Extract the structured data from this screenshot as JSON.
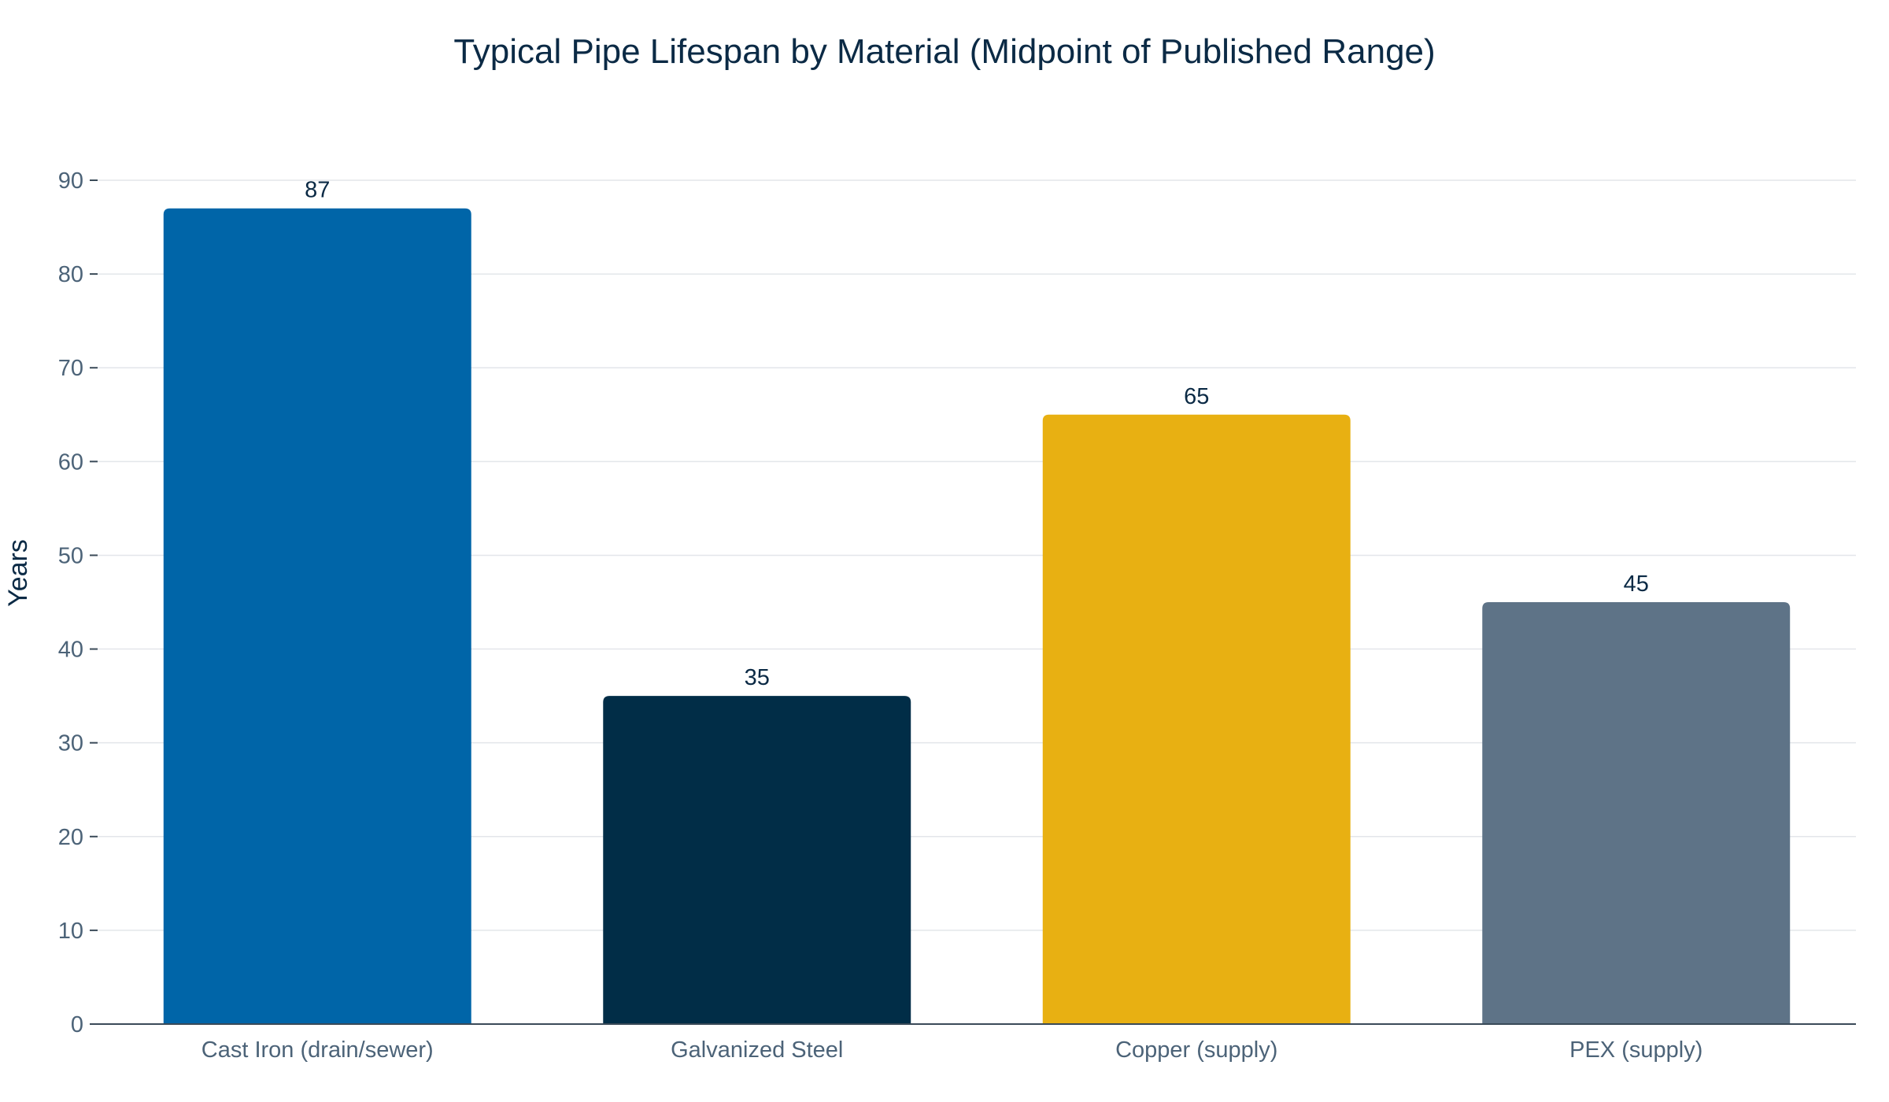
{
  "chart_data": {
    "type": "bar",
    "title": "Typical Pipe Lifespan by Material (Midpoint of Published Range)",
    "xlabel": "",
    "ylabel": "Years",
    "ylim": [
      0,
      90
    ],
    "yticks": [
      0,
      10,
      20,
      30,
      40,
      50,
      60,
      70,
      80,
      90
    ],
    "grid": true,
    "categories": [
      "Cast Iron (drain/sewer)",
      "Galvanized Steel",
      "Copper (supply)",
      "PEX (supply)"
    ],
    "values": [
      87,
      35,
      65,
      45
    ],
    "data_labels": [
      "87",
      "35",
      "65",
      "45"
    ],
    "colors": [
      "#0065a8",
      "#012d47",
      "#e8b012",
      "#5e7387"
    ]
  }
}
